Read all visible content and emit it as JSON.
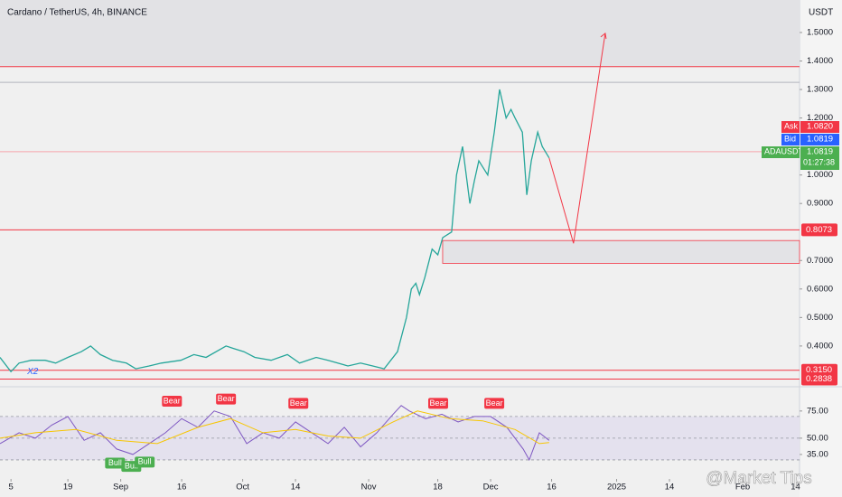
{
  "header": {
    "title": "Cardano / TetherUS, 4h, BINANCE",
    "currency": "USDT"
  },
  "watermark": "@Market Tips",
  "chart_data": [
    {
      "type": "line",
      "x": [
        1.3,
        4,
        6,
        9,
        12.4,
        15,
        18,
        21.3,
        23.6,
        26,
        29,
        32.4,
        34.7,
        38,
        41,
        45.8,
        49,
        52,
        56.9,
        59,
        61.3,
        64,
        68,
        72,
        75,
        79.1,
        82,
        86.9,
        90,
        93,
        95.8,
        99.1,
        101.3,
        102.5,
        103.6,
        104.5,
        105.8,
        107.6,
        109,
        110.2,
        112.4,
        113.6,
        115.1,
        116.9,
        118,
        119.1,
        121.3,
        122.9,
        124.2,
        125.8,
        127,
        128,
        129.8,
        130.9,
        132,
        133.6,
        134.7,
        136.4
      ],
      "values": [
        0.36,
        0.31,
        0.34,
        0.35,
        0.35,
        0.34,
        0.36,
        0.38,
        0.4,
        0.37,
        0.35,
        0.34,
        0.32,
        0.33,
        0.34,
        0.35,
        0.37,
        0.36,
        0.4,
        0.39,
        0.38,
        0.36,
        0.35,
        0.37,
        0.34,
        0.36,
        0.35,
        0.33,
        0.34,
        0.33,
        0.32,
        0.38,
        0.5,
        0.6,
        0.62,
        0.58,
        0.64,
        0.74,
        0.72,
        0.78,
        0.8,
        1.0,
        1.1,
        0.9,
        0.98,
        1.05,
        1.0,
        1.15,
        1.3,
        1.2,
        1.23,
        1.2,
        1.15,
        0.93,
        1.05,
        1.15,
        1.1,
        1.06
      ],
      "color": "#26a69a",
      "xlim": [
        1.3,
        198
      ],
      "xticks": [
        {
          "value": 4,
          "label": "5"
        },
        {
          "value": 18,
          "label": "19"
        },
        {
          "value": 31,
          "label": "Sep"
        },
        {
          "value": 46,
          "label": "16"
        },
        {
          "value": 61,
          "label": "Oct"
        },
        {
          "value": 74,
          "label": "14"
        },
        {
          "value": 92,
          "label": "Nov"
        },
        {
          "value": 109,
          "label": "18"
        },
        {
          "value": 122,
          "label": "Dec"
        },
        {
          "value": 137,
          "label": "16"
        },
        {
          "value": 153,
          "label": "2025"
        },
        {
          "value": 166,
          "label": "14"
        },
        {
          "value": 184,
          "label": "Feb"
        },
        {
          "value": 197,
          "label": "14"
        }
      ],
      "ylim": [
        0.276,
        1.614
      ],
      "yticks": [
        {
          "value": 0.4,
          "label": "0.4000"
        },
        {
          "value": 0.5,
          "label": "0.5000"
        },
        {
          "value": 0.6,
          "label": "0.6000"
        },
        {
          "value": 0.7,
          "label": "0.7000"
        },
        {
          "value": 0.9,
          "label": "0.9000"
        },
        {
          "value": 1.0,
          "label": "1.0000"
        },
        {
          "value": 1.2,
          "label": "1.2000"
        },
        {
          "value": 1.3,
          "label": "1.3000"
        },
        {
          "value": 1.4,
          "label": "1.4000"
        },
        {
          "value": 1.5,
          "label": "1.5000"
        }
      ],
      "levels": [
        {
          "value": 1.38,
          "color": "#f23645"
        },
        {
          "value": 1.325,
          "color": "#b2b5be"
        },
        {
          "value": 1.0819,
          "color": "#f7a5ab"
        },
        {
          "value": 0.8073,
          "label": "0.8073",
          "color": "#f23645"
        },
        {
          "value": 0.315,
          "label": "0.3150",
          "color": "#f23645"
        },
        {
          "value": 0.2838,
          "label": "0.2838",
          "color": "#f23645"
        }
      ],
      "zone": {
        "x": 110.2,
        "top": 0.77,
        "bottom": 0.69
      },
      "upper_zone": 1.38,
      "arrow": {
        "x": [
          136.4,
          142.4,
          150.2
        ],
        "values": [
          1.06,
          0.76,
          1.497
        ],
        "color": "#f23645"
      },
      "annotation": {
        "text": "X2",
        "x": 8,
        "y": 0.31
      },
      "price_tags": [
        {
          "name": "Ask",
          "value": 1.082,
          "label": "1.0820",
          "color": "#f23645"
        },
        {
          "name": "Bid",
          "value": 1.0819,
          "label": "1.0819",
          "color": "#2962ff"
        },
        {
          "name": "ADAUSDT",
          "value": 1.0819,
          "label": "1.0819",
          "countdown": "01:27:38",
          "color": "#4caf50"
        }
      ]
    },
    {
      "type": "line",
      "x": [
        1.3,
        6,
        10,
        14,
        18,
        22,
        26,
        30,
        34,
        38,
        42,
        46,
        50,
        54,
        58,
        62,
        66,
        70,
        74,
        78,
        82,
        86,
        90,
        94,
        98,
        100,
        102,
        106,
        110,
        114,
        118,
        122,
        126,
        130,
        131.5,
        134,
        136.4
      ],
      "series": [
        {
          "color": "#7e57c2",
          "values": [
            45,
            55,
            50,
            62,
            70,
            48,
            55,
            40,
            35,
            45,
            55,
            68,
            60,
            75,
            70,
            45,
            55,
            50,
            65,
            55,
            45,
            60,
            42,
            55,
            72,
            80,
            75,
            68,
            72,
            65,
            70,
            70,
            60,
            40,
            30,
            55,
            48
          ]
        }
      ],
      "ma": {
        "color": "#f7c600",
        "x": [
          1.3,
          10,
          20,
          30,
          40,
          50,
          58,
          66,
          74,
          82,
          90,
          98,
          104,
          112,
          120,
          128,
          134,
          136.4
        ],
        "values": [
          50,
          55,
          58,
          48,
          45,
          60,
          68,
          55,
          58,
          52,
          50,
          65,
          75,
          68,
          66,
          58,
          45,
          46
        ]
      },
      "ylim": [
        20.8,
        94
      ],
      "yticks": [
        {
          "value": 35,
          "label": "35.00"
        },
        {
          "value": 50,
          "label": "50.00"
        },
        {
          "value": 75,
          "label": "75.00"
        }
      ],
      "bands": [
        30,
        50,
        70
      ],
      "annotations": [
        {
          "text": "Bear",
          "x": 43.6,
          "y": 84
        },
        {
          "text": "Bear",
          "x": 56.9,
          "y": 86
        },
        {
          "text": "Bear",
          "x": 74.7,
          "y": 82
        },
        {
          "text": "Bear",
          "x": 109.1,
          "y": 82
        },
        {
          "text": "Bear",
          "x": 122.9,
          "y": 82
        },
        {
          "text": "Bull",
          "x": 29.6,
          "y": 27
        },
        {
          "text": "Bull",
          "x": 33.6,
          "y": 24
        },
        {
          "text": "Bull",
          "x": 36.9,
          "y": 28
        }
      ]
    }
  ]
}
